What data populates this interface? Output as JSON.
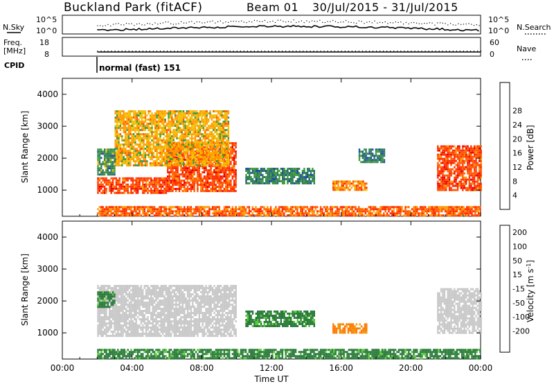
{
  "header": {
    "station": "Buckland Park (fitACF)",
    "beam": "Beam 01",
    "date_range": "30/Jul/2015 - 31/Jul/2015"
  },
  "noise_panel": {
    "left_label": "N.Sky",
    "right_label": "N.Search",
    "left_ticks": [
      "10^5",
      "10^0"
    ],
    "right_ticks": [
      "10^5",
      "10^0"
    ]
  },
  "freq_panel": {
    "left_label_1": "Freq.",
    "left_label_2": "[MHz]",
    "right_label": "Nave",
    "left_ticks": [
      "18",
      "8"
    ],
    "right_ticks": [
      "60",
      "0"
    ]
  },
  "cpid": {
    "label": "CPID",
    "value": "normal (fast) 151"
  },
  "colors": {
    "power_scale": [
      "#1a1aff",
      "#1e4fa0",
      "#2f7a5a",
      "#3e9a3e",
      "#f0c000",
      "#ff9a00",
      "#ff5a00",
      "#ff2a00",
      "#e60000"
    ],
    "velocity_scale": [
      "#1a1ab4",
      "#1a3ac8",
      "#2a7a3a",
      "#5ac83a",
      "#c8c8c8",
      "#e6a000",
      "#ff7a00",
      "#ff3a00",
      "#e60000"
    ]
  },
  "chart_data": [
    {
      "type": "heatmap",
      "name": "power",
      "ylabel": "Slant Range [km]",
      "xlabel": "Time UT",
      "ylim": [
        180,
        4500
      ],
      "xlim": [
        0,
        24
      ],
      "y_ticks": [
        1000,
        2000,
        3000,
        4000
      ],
      "x_ticks": [
        "00:00",
        "04:00",
        "08:00",
        "12:00",
        "16:00",
        "20:00",
        "00:00"
      ],
      "colorbar": {
        "label": "Power [dB]",
        "ticks": [
          4,
          8,
          12,
          16,
          20,
          24,
          28
        ]
      },
      "regions": [
        {
          "t0": 2.0,
          "t1": 6.0,
          "r0": 900,
          "r1": 1400,
          "value": 26
        },
        {
          "t0": 6.0,
          "t1": 10.0,
          "r0": 1000,
          "r1": 2500,
          "value": 26
        },
        {
          "t0": 3.0,
          "t1": 9.5,
          "r0": 1800,
          "r1": 3500,
          "value": 18
        },
        {
          "t0": 2.0,
          "t1": 3.0,
          "r0": 1500,
          "r1": 2300,
          "value": 10
        },
        {
          "t0": 10.5,
          "t1": 14.5,
          "r0": 1200,
          "r1": 1700,
          "value": 9
        },
        {
          "t0": 15.5,
          "t1": 17.5,
          "r0": 1000,
          "r1": 1300,
          "value": 22
        },
        {
          "t0": 17.0,
          "t1": 18.5,
          "r0": 1900,
          "r1": 2300,
          "value": 8
        },
        {
          "t0": 21.5,
          "t1": 24.0,
          "r0": 1000,
          "r1": 2400,
          "value": 26
        },
        {
          "t0": 2.0,
          "t1": 24.0,
          "r0": 200,
          "r1": 500,
          "value": 24
        }
      ]
    },
    {
      "type": "heatmap",
      "name": "velocity",
      "ylabel": "Slant Range [km]",
      "xlabel": "Time UT",
      "ylim": [
        180,
        4500
      ],
      "xlim": [
        0,
        24
      ],
      "y_ticks": [
        1000,
        2000,
        3000,
        4000
      ],
      "x_ticks": [
        "00:00",
        "04:00",
        "08:00",
        "12:00",
        "16:00",
        "20:00",
        "00:00"
      ],
      "colorbar": {
        "label": "Velocity [m s",
        "label_sup": "-1",
        "label_end": "]",
        "ticks": [
          "200",
          "100",
          "50",
          "15",
          "-15",
          "-50",
          "-100",
          "-200"
        ]
      },
      "regions": [
        {
          "t0": 2.0,
          "t1": 10.0,
          "r0": 900,
          "r1": 2500,
          "value": 0
        },
        {
          "t0": 2.0,
          "t1": 3.0,
          "r0": 1800,
          "r1": 2300,
          "value": 40
        },
        {
          "t0": 10.5,
          "t1": 14.5,
          "r0": 1200,
          "r1": 1700,
          "value": 40
        },
        {
          "t0": 15.5,
          "t1": 17.5,
          "r0": 1000,
          "r1": 1300,
          "value": -40
        },
        {
          "t0": 21.5,
          "t1": 24.0,
          "r0": 1000,
          "r1": 2400,
          "value": 0
        },
        {
          "t0": 2.0,
          "t1": 24.0,
          "r0": 200,
          "r1": 500,
          "value": 40
        }
      ]
    }
  ]
}
